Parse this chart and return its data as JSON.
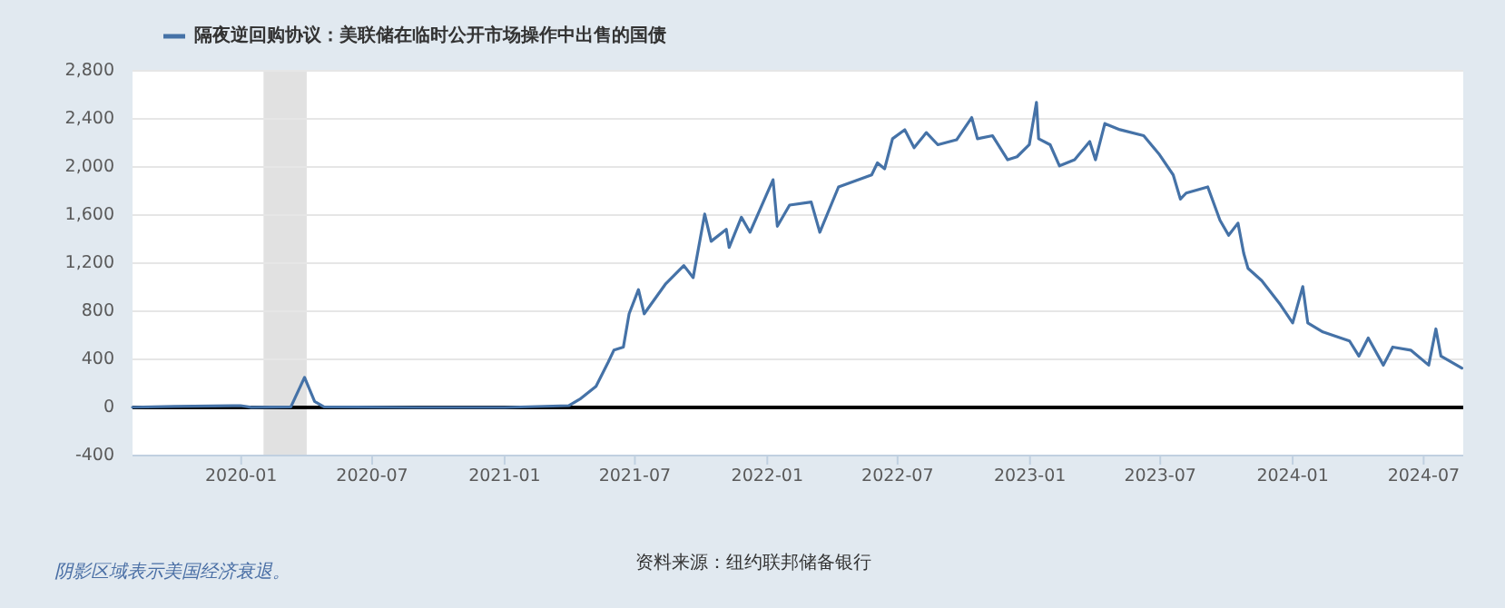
{
  "chart_data": {
    "type": "line",
    "x": [
      "2019-08-03",
      "2019-09-30",
      "2019-12-31",
      "2020-01-15",
      "2020-03-10",
      "2020-03-29",
      "2020-04-05",
      "2020-04-12",
      "2020-04-25",
      "2020-09-01",
      "2021-01-01",
      "2021-03-31",
      "2021-04-17",
      "2021-05-08",
      "2021-05-25",
      "2021-06-02",
      "2021-06-15",
      "2021-06-23",
      "2021-07-06",
      "2021-07-14",
      "2021-08-13",
      "2021-09-07",
      "2021-09-20",
      "2021-10-06",
      "2021-10-15",
      "2021-11-05",
      "2021-11-09",
      "2021-11-26",
      "2021-12-08",
      "2021-12-30",
      "2022-01-09",
      "2022-01-15",
      "2022-02-01",
      "2022-03-03",
      "2022-03-15",
      "2022-04-10",
      "2022-05-26",
      "2022-06-03",
      "2022-06-13",
      "2022-06-24",
      "2022-07-11",
      "2022-07-24",
      "2022-08-10",
      "2022-08-26",
      "2022-09-21",
      "2022-10-12",
      "2022-10-20",
      "2022-11-10",
      "2022-12-01",
      "2022-12-14",
      "2022-12-31",
      "2023-01-10",
      "2023-01-13",
      "2023-01-29",
      "2023-02-11",
      "2023-03-04",
      "2023-03-25",
      "2023-04-02",
      "2023-04-15",
      "2023-05-06",
      "2023-06-08",
      "2023-06-29",
      "2023-07-19",
      "2023-07-29",
      "2023-08-06",
      "2023-09-05",
      "2023-09-22",
      "2023-10-04",
      "2023-10-17",
      "2023-10-25",
      "2023-10-31",
      "2023-11-19",
      "2023-12-15",
      "2024-01-01",
      "2024-01-15",
      "2024-01-22",
      "2024-02-12",
      "2024-03-20",
      "2024-04-02",
      "2024-04-15",
      "2024-05-06",
      "2024-05-19",
      "2024-06-13",
      "2024-07-08",
      "2024-07-18",
      "2024-07-25",
      "2024-08-23"
    ],
    "series": [
      {
        "name": "隔夜逆回购协议：美联储在临时公开市场操作中出售的国债",
        "color": "#4572a7",
        "values": [
          2,
          8,
          15,
          1,
          5,
          250,
          150,
          50,
          5,
          0,
          0,
          15,
          75,
          176,
          377,
          478,
          502,
          779,
          980,
          779,
          1030,
          1180,
          1080,
          1608,
          1382,
          1481,
          1331,
          1582,
          1457,
          1758,
          1894,
          1507,
          1683,
          1708,
          1457,
          1834,
          1934,
          2034,
          1985,
          2235,
          2310,
          2160,
          2286,
          2185,
          2226,
          2411,
          2235,
          2260,
          2060,
          2085,
          2185,
          2537,
          2235,
          2185,
          2009,
          2060,
          2211,
          2060,
          2361,
          2310,
          2260,
          2110,
          1934,
          1733,
          1783,
          1834,
          1557,
          1432,
          1533,
          1281,
          1156,
          1055,
          854,
          703,
          1005,
          703,
          628,
          553,
          427,
          578,
          352,
          502,
          477,
          352,
          653,
          427,
          327
        ]
      }
    ],
    "xlim": [
      "2019-08-03",
      "2024-08-25"
    ],
    "xticks": [
      "2020-01",
      "2020-07",
      "2021-01",
      "2021-07",
      "2022-01",
      "2022-07",
      "2023-01",
      "2023-07",
      "2024-01",
      "2024-07"
    ],
    "ylim": [
      -400,
      2800
    ],
    "yticks": [
      {
        "value": -400,
        "label": "-400"
      },
      0,
      400,
      800,
      {
        "value": 1200,
        "label": "1,200"
      },
      {
        "value": 1600,
        "label": "1,600"
      },
      {
        "value": 2000,
        "label": "2,000"
      },
      {
        "value": 2400,
        "label": "2,400"
      },
      {
        "value": 2800,
        "label": "2,800"
      }
    ],
    "grid": "y",
    "legend": "top",
    "bands": [
      {
        "axis": "x",
        "from": "2020-02-01",
        "to": "2020-04-01",
        "color": "#e1e1e1"
      }
    ],
    "ref_lines": [
      {
        "axis": "y",
        "value": 0,
        "color": "#000000"
      }
    ],
    "annotations": [
      "阴影区域表示美国经济衰退。",
      "资料来源：纽约联邦储备银行"
    ]
  }
}
